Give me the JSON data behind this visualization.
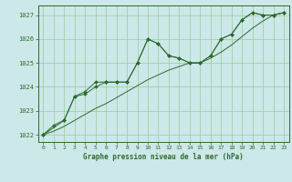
{
  "background_color": "#cce8e8",
  "grid_color": "#99cc99",
  "line_color": "#2d6a2d",
  "marker_color": "#2d6a2d",
  "xlabel": "Graphe pression niveau de la mer (hPa)",
  "xlim": [
    -0.5,
    23.5
  ],
  "ylim": [
    1021.7,
    1027.4
  ],
  "yticks": [
    1022,
    1023,
    1024,
    1025,
    1026,
    1027
  ],
  "xticks": [
    0,
    1,
    2,
    3,
    4,
    5,
    6,
    7,
    8,
    9,
    10,
    11,
    12,
    13,
    14,
    15,
    16,
    17,
    18,
    19,
    20,
    21,
    22,
    23
  ],
  "series1_x": [
    0,
    1,
    2,
    3,
    4,
    5,
    6,
    7,
    8,
    9,
    10,
    11,
    12,
    13,
    14,
    15,
    16,
    17,
    18,
    19,
    20,
    21,
    22,
    23
  ],
  "series1_y": [
    1022.0,
    1022.4,
    1022.6,
    1023.6,
    1023.8,
    1024.2,
    1024.2,
    1024.2,
    1024.2,
    1025.0,
    1026.0,
    1025.8,
    1025.3,
    1025.2,
    1025.0,
    1025.0,
    1025.3,
    1026.0,
    1026.2,
    1026.8,
    1027.1,
    1027.0,
    1027.0,
    1027.1
  ],
  "series2_x": [
    0,
    1,
    2,
    3,
    4,
    5,
    6,
    7,
    8,
    9,
    10,
    11,
    12,
    13,
    14,
    15,
    16,
    17,
    18,
    19,
    20,
    21,
    22,
    23
  ],
  "series2_y": [
    1022.0,
    1022.15,
    1022.35,
    1022.6,
    1022.85,
    1023.1,
    1023.3,
    1023.55,
    1023.8,
    1024.05,
    1024.3,
    1024.5,
    1024.7,
    1024.85,
    1025.0,
    1025.0,
    1025.2,
    1025.45,
    1025.75,
    1026.1,
    1026.45,
    1026.75,
    1027.0,
    1027.1
  ],
  "series3_x": [
    0,
    2,
    3,
    4,
    5,
    6,
    7,
    8,
    9,
    10,
    11,
    12,
    13,
    14,
    15,
    16,
    17,
    18,
    19,
    20,
    21,
    22,
    23
  ],
  "series3_y": [
    1022.0,
    1022.6,
    1023.6,
    1023.7,
    1024.0,
    1024.2,
    1024.2,
    1024.2,
    1025.0,
    1026.0,
    1025.8,
    1025.3,
    1025.2,
    1025.0,
    1025.0,
    1025.3,
    1026.0,
    1026.2,
    1026.8,
    1027.1,
    1027.0,
    1027.0,
    1027.1
  ]
}
